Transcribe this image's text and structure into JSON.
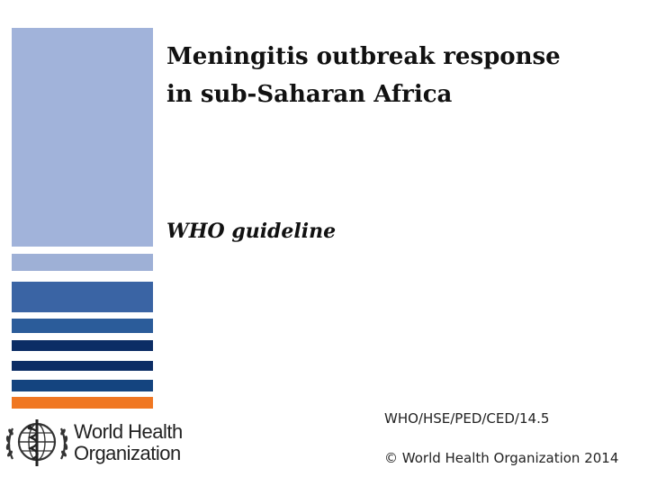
{
  "cover": {
    "title_line1": "Meningitis outbreak response",
    "title_line2": "in sub-Saharan Africa",
    "subtitle": "WHO guideline",
    "document_number": "WHO/HSE/PED/CED/14.5",
    "copyright": "© World Health Organization 2014"
  },
  "logo": {
    "icon": "who-emblem-icon",
    "line1": "World Health",
    "line2": "Organization"
  },
  "colors": {
    "bar_light": "#a1b3da",
    "bar_mid": "#3a64a4",
    "bar_dark": "#0c2d65",
    "bar_accent": "#f07722"
  }
}
